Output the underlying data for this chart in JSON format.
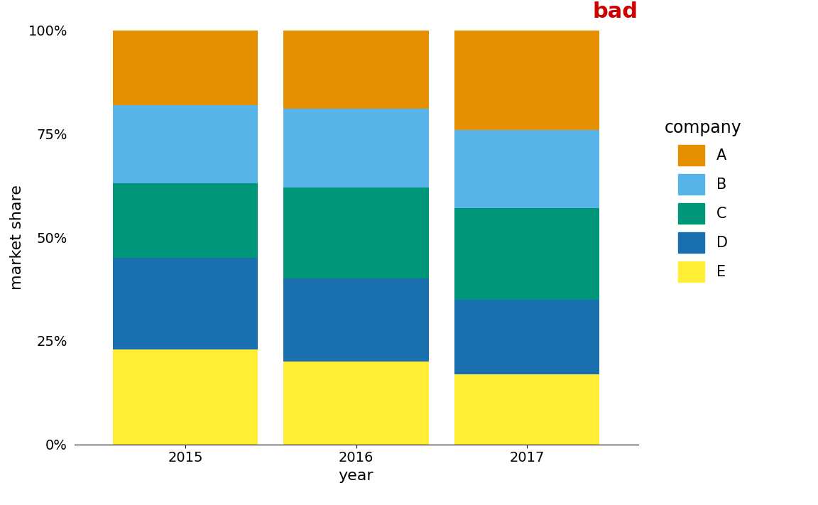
{
  "years": [
    2015,
    2016,
    2017
  ],
  "companies": [
    "E",
    "D",
    "C",
    "B",
    "A"
  ],
  "values": {
    "E": [
      0.23,
      0.2,
      0.17
    ],
    "D": [
      0.22,
      0.2,
      0.18
    ],
    "C": [
      0.18,
      0.22,
      0.22
    ],
    "B": [
      0.19,
      0.19,
      0.19
    ],
    "A": [
      0.18,
      0.19,
      0.24
    ]
  },
  "colors": {
    "E": "#FFEE33",
    "D": "#1A6FAF",
    "C": "#00967A",
    "B": "#56B4E9",
    "A": "#E69000"
  },
  "bar_width": 0.85,
  "xlabel": "year",
  "ylabel": "market share",
  "yticks": [
    0.0,
    0.25,
    0.5,
    0.75,
    1.0
  ],
  "ytick_labels": [
    "0%",
    "25%",
    "50%",
    "75%",
    "100%"
  ],
  "legend_title": "company",
  "bad_label": "bad",
  "bad_color": "#CC0000",
  "background_color": "#FFFFFF",
  "bad_fontsize": 22,
  "axis_label_fontsize": 16,
  "tick_fontsize": 14,
  "legend_fontsize": 15,
  "legend_title_fontsize": 17
}
